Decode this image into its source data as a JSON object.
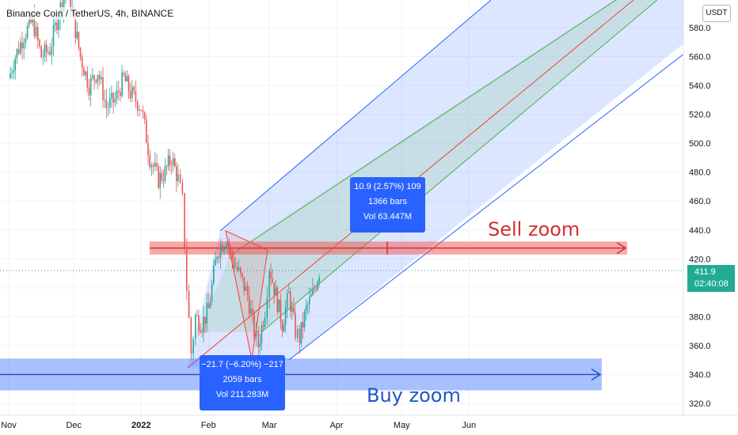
{
  "header": {
    "title": "Binance Coin / TetherUS, 4h, BINANCE",
    "currency": "USDT"
  },
  "price_tag": {
    "price": "411.9",
    "countdown": "02:40:08"
  },
  "measure_up": {
    "line1": "10.9 (2.57%) 109",
    "line2": "1366 bars",
    "line3": "Vol 63.447M"
  },
  "measure_down": {
    "line1": "−21.7 (−6.20%) −217",
    "line2": "2059 bars",
    "line3": "Vol 211.283M"
  },
  "zones": {
    "sell_label": "Sell zoom",
    "buy_label": "Buy zoom"
  },
  "colors": {
    "up": "#26a69a",
    "down": "#ef5350",
    "sell": "#d32f2f",
    "buy": "#1e56c8",
    "channel": "#2962ff",
    "mid": "#f44336",
    "inner": "#4caf50",
    "tag": "#22ab94"
  },
  "chart_data": {
    "type": "candlestick",
    "symbol": "Binance Coin / TetherUS",
    "interval": "4h",
    "exchange": "BINANCE",
    "y_axis": {
      "ticks": [
        "580.0",
        "560.0",
        "540.0",
        "520.0",
        "500.0",
        "480.0",
        "460.0",
        "440.0",
        "420.0",
        "400.0",
        "380.0",
        "360.0",
        "340.0",
        "320.0"
      ],
      "ylim": [
        314,
        586
      ]
    },
    "x_axis": {
      "ticks": [
        "Nov",
        "Dec",
        "2022",
        "Feb",
        "Mar",
        "Apr",
        "May",
        "Jun"
      ]
    },
    "last_price": 411.9,
    "close_path": [
      {
        "d": "2021-11-01",
        "c": 545
      },
      {
        "d": "2021-11-04",
        "c": 560
      },
      {
        "d": "2021-11-08",
        "c": 575
      },
      {
        "d": "2021-11-12",
        "c": 585
      },
      {
        "d": "2021-11-16",
        "c": 560
      },
      {
        "d": "2021-11-20",
        "c": 565
      },
      {
        "d": "2021-11-24",
        "c": 590
      },
      {
        "d": "2021-11-28",
        "c": 610
      },
      {
        "d": "2021-12-01",
        "c": 585
      },
      {
        "d": "2021-12-04",
        "c": 560
      },
      {
        "d": "2021-12-08",
        "c": 540
      },
      {
        "d": "2021-12-12",
        "c": 550
      },
      {
        "d": "2021-12-16",
        "c": 525
      },
      {
        "d": "2021-12-20",
        "c": 530
      },
      {
        "d": "2021-12-24",
        "c": 545
      },
      {
        "d": "2021-12-27",
        "c": 535
      },
      {
        "d": "2022-01-01",
        "c": 525
      },
      {
        "d": "2022-01-05",
        "c": 490
      },
      {
        "d": "2022-01-09",
        "c": 475
      },
      {
        "d": "2022-01-12",
        "c": 480
      },
      {
        "d": "2022-01-15",
        "c": 490
      },
      {
        "d": "2022-01-18",
        "c": 475
      },
      {
        "d": "2022-01-20",
        "c": 460
      },
      {
        "d": "2022-01-22",
        "c": 400
      },
      {
        "d": "2022-01-24",
        "c": 355
      },
      {
        "d": "2022-01-26",
        "c": 380
      },
      {
        "d": "2022-01-29",
        "c": 375
      },
      {
        "d": "2022-02-01",
        "c": 385
      },
      {
        "d": "2022-02-05",
        "c": 425
      },
      {
        "d": "2022-02-09",
        "c": 435
      },
      {
        "d": "2022-02-12",
        "c": 420
      },
      {
        "d": "2022-02-15",
        "c": 410
      },
      {
        "d": "2022-02-19",
        "c": 395
      },
      {
        "d": "2022-02-22",
        "c": 370
      },
      {
        "d": "2022-02-24",
        "c": 360
      },
      {
        "d": "2022-02-27",
        "c": 385
      },
      {
        "d": "2022-03-01",
        "c": 415
      },
      {
        "d": "2022-03-04",
        "c": 395
      },
      {
        "d": "2022-03-07",
        "c": 375
      },
      {
        "d": "2022-03-10",
        "c": 395
      },
      {
        "d": "2022-03-13",
        "c": 370
      },
      {
        "d": "2022-03-15",
        "c": 365
      },
      {
        "d": "2022-03-18",
        "c": 385
      },
      {
        "d": "2022-03-21",
        "c": 395
      },
      {
        "d": "2022-03-24",
        "c": 411.9
      }
    ],
    "sell_zone": {
      "label": "Sell zoom",
      "low": 423,
      "high": 432
    },
    "buy_zone": {
      "label": "Buy zoom",
      "low": 329,
      "high": 351
    },
    "channel": {
      "type": "pitchfork",
      "direction": "ascending"
    },
    "annotations": [
      {
        "text": "10.9 (2.57%) 109 / 1366 bars / Vol 63.447M"
      },
      {
        "text": "−21.7 (−6.20%) −217 / 2059 bars / Vol 211.283M"
      }
    ]
  }
}
